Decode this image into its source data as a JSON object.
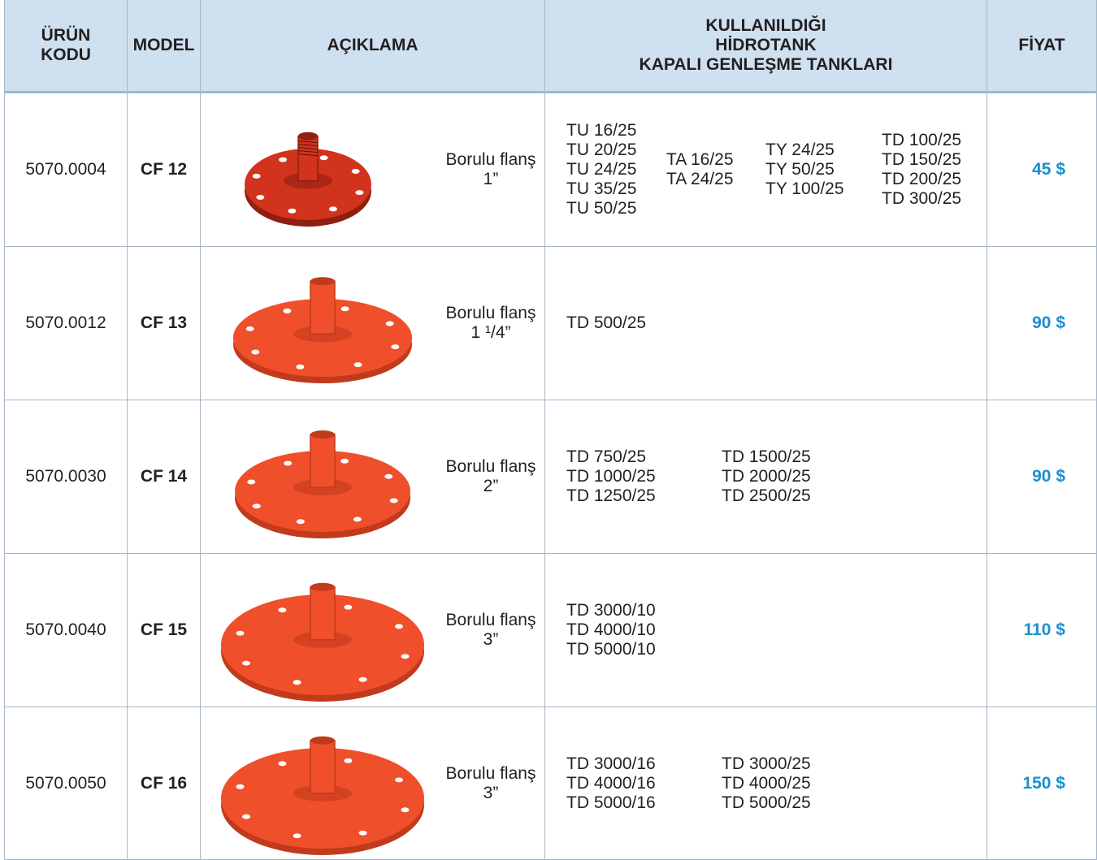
{
  "header": {
    "columns": [
      [
        "ÜRÜN",
        "KODU"
      ],
      [
        "MODEL"
      ],
      [
        "AÇIKLAMA"
      ],
      [
        "KULLANILDIĞI",
        "HİDROTANK",
        "KAPALI GENLEŞME TANKLARI"
      ],
      [
        "FİYAT"
      ]
    ]
  },
  "rows": [
    {
      "code": "5070.0004",
      "model": "CF 12",
      "description": [
        "Borulu flanş",
        "1”"
      ],
      "tanks": [
        [
          "TU 16/25",
          "TU 20/25",
          "TU 24/25",
          "TU 35/25",
          "TU 50/25"
        ],
        [
          "TA 16/25",
          "TA 24/25"
        ],
        [
          "TY 24/25",
          "TY 50/25",
          "TY 100/25"
        ],
        [
          "TD 100/25",
          "TD 150/25",
          "TD 200/25",
          "TD 300/25"
        ]
      ],
      "price": "45 $"
    },
    {
      "code": "5070.0012",
      "model": "CF 13",
      "description": [
        "Borulu flanş",
        "1 ¹/4”"
      ],
      "tanks": [
        [
          "TD 500/25"
        ]
      ],
      "price": "90 $"
    },
    {
      "code": "5070.0030",
      "model": "CF 14",
      "description": [
        "Borulu flanş",
        "2”"
      ],
      "tanks": [
        [
          "TD 750/25",
          "TD 1000/25",
          "TD 1250/25"
        ],
        [
          "TD 1500/25",
          "TD 2000/25",
          "TD 2500/25"
        ]
      ],
      "price": "90 $"
    },
    {
      "code": "5070.0040",
      "model": "CF 15",
      "description": [
        "Borulu flanş",
        "3”"
      ],
      "tanks": [
        [
          "TD 3000/10",
          "TD 4000/10",
          "TD 5000/10"
        ]
      ],
      "price": "110 $"
    },
    {
      "code": "5070.0050",
      "model": "CF 16",
      "description": [
        "Borulu flanş",
        "3”"
      ],
      "tanks": [
        [
          "TD 3000/16",
          "TD 4000/16",
          "TD 5000/16"
        ],
        [
          "TD 3000/25",
          "TD 4000/25",
          "TD 5000/25"
        ]
      ],
      "price": "150 $"
    }
  ]
}
